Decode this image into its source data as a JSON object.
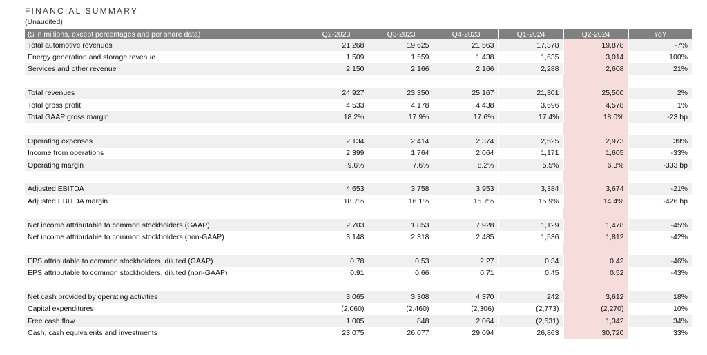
{
  "title": "FINANCIAL SUMMARY",
  "subtitle": "(Unaudited)",
  "header": {
    "label": "($ in millions, except percentages and per share data)",
    "columns": [
      "Q2-2023",
      "Q3-2023",
      "Q4-2023",
      "Q1-2024",
      "Q2-2024",
      "YoY"
    ]
  },
  "highlight_color": "#f7dcdc",
  "header_color": "#808080",
  "groups": [
    {
      "rows": [
        {
          "label": "Total automotive revenues",
          "values": [
            "21,268",
            "19,625",
            "21,563",
            "17,378",
            "19,878"
          ],
          "yoy": "-7%"
        },
        {
          "label": "Energy generation and storage revenue",
          "values": [
            "1,509",
            "1,559",
            "1,438",
            "1,635",
            "3,014"
          ],
          "yoy": "100%"
        },
        {
          "label": "Services and other revenue",
          "values": [
            "2,150",
            "2,166",
            "2,166",
            "2,288",
            "2,608"
          ],
          "yoy": "21%"
        }
      ]
    },
    {
      "rows": [
        {
          "label": "Total revenues",
          "values": [
            "24,927",
            "23,350",
            "25,167",
            "21,301",
            "25,500"
          ],
          "yoy": "2%"
        },
        {
          "label": "Total gross profit",
          "values": [
            "4,533",
            "4,178",
            "4,438",
            "3,696",
            "4,578"
          ],
          "yoy": "1%"
        },
        {
          "label": "Total GAAP gross margin",
          "values": [
            "18.2%",
            "17.9%",
            "17.6%",
            "17.4%",
            "18.0%"
          ],
          "yoy": "-23 bp"
        }
      ]
    },
    {
      "rows": [
        {
          "label": "Operating expenses",
          "values": [
            "2,134",
            "2,414",
            "2,374",
            "2,525",
            "2,973"
          ],
          "yoy": "39%"
        },
        {
          "label": "Income from operations",
          "values": [
            "2,399",
            "1,764",
            "2,064",
            "1,171",
            "1,605"
          ],
          "yoy": "-33%"
        },
        {
          "label": "Operating margin",
          "values": [
            "9.6%",
            "7.6%",
            "8.2%",
            "5.5%",
            "6.3%"
          ],
          "yoy": "-333 bp"
        }
      ]
    },
    {
      "rows": [
        {
          "label": "Adjusted EBITDA",
          "values": [
            "4,653",
            "3,758",
            "3,953",
            "3,384",
            "3,674"
          ],
          "yoy": "-21%"
        },
        {
          "label": "Adjusted EBITDA margin",
          "values": [
            "18.7%",
            "16.1%",
            "15.7%",
            "15.9%",
            "14.4%"
          ],
          "yoy": "-426 bp"
        }
      ]
    },
    {
      "rows": [
        {
          "label": "Net income attributable to common stockholders (GAAP)",
          "values": [
            "2,703",
            "1,853",
            "7,928",
            "1,129",
            "1,478"
          ],
          "yoy": "-45%"
        },
        {
          "label": "Net income attributable to common stockholders (non-GAAP)",
          "values": [
            "3,148",
            "2,318",
            "2,485",
            "1,536",
            "1,812"
          ],
          "yoy": "-42%"
        }
      ]
    },
    {
      "rows": [
        {
          "label": "EPS attributable to common stockholders, diluted (GAAP)",
          "values": [
            "0.78",
            "0.53",
            "2.27",
            "0.34",
            "0.42"
          ],
          "yoy": "-46%"
        },
        {
          "label": "EPS attributable to common stockholders, diluted (non-GAAP)",
          "values": [
            "0.91",
            "0.66",
            "0.71",
            "0.45",
            "0.52"
          ],
          "yoy": "-43%"
        }
      ]
    },
    {
      "rows": [
        {
          "label": "Net cash provided by operating activities",
          "values": [
            "3,065",
            "3,308",
            "4,370",
            "242",
            "3,612"
          ],
          "yoy": "18%"
        },
        {
          "label": "Capital expenditures",
          "values": [
            "(2,060)",
            "(2,460)",
            "(2,306)",
            "(2,773)",
            "(2,270)"
          ],
          "yoy": "10%"
        },
        {
          "label": "Free cash flow",
          "values": [
            "1,005",
            "848",
            "2,064",
            "(2,531)",
            "1,342"
          ],
          "yoy": "34%"
        },
        {
          "label": "Cash, cash equivalents and investments",
          "values": [
            "23,075",
            "26,077",
            "29,094",
            "26,863",
            "30,720"
          ],
          "yoy": "33%"
        }
      ]
    }
  ]
}
